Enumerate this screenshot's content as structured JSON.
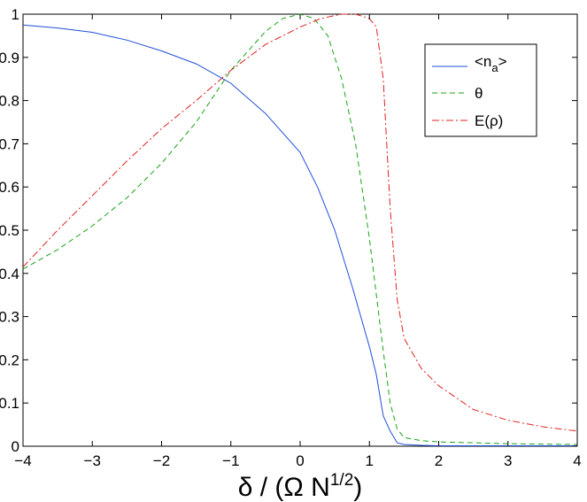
{
  "chart_data": {
    "type": "line",
    "xlabel": "δ / (Ω N1/2)",
    "xlabel_main": "δ / (Ω N",
    "xlabel_sup": "1/2",
    "xlabel_close": ")",
    "ylabel": "",
    "xlim": [
      -4,
      4
    ],
    "ylim": [
      0,
      1
    ],
    "grid": false,
    "legend_position": "top-right",
    "x_ticks": [
      -4,
      -3,
      -2,
      -1,
      0,
      1,
      2,
      3,
      4
    ],
    "x_tick_labels": [
      "−4",
      "−3",
      "−2",
      "−1",
      "0",
      "1",
      "2",
      "3",
      "4"
    ],
    "y_ticks": [
      0,
      0.1,
      0.2,
      0.3,
      0.4,
      0.5,
      0.6,
      0.7,
      0.8,
      0.9,
      1
    ],
    "y_tick_labels": [
      "0",
      "0.1",
      "0.2",
      "0.3",
      "0.4",
      "0.5",
      "0.6",
      "0.7",
      "0.8",
      "0.9",
      "1"
    ],
    "series": [
      {
        "name": "<na>",
        "legend_main": "<n",
        "legend_sub": "a",
        "legend_close": ">",
        "color": "#1f4fd6",
        "dash": "solid",
        "x": [
          -4,
          -3.5,
          -3,
          -2.5,
          -2,
          -1.5,
          -1,
          -0.5,
          0,
          0.25,
          0.5,
          0.75,
          1,
          1.1,
          1.2,
          1.3,
          1.4,
          1.5,
          1.75,
          2,
          2.5,
          3,
          3.5,
          4
        ],
        "y": [
          0.975,
          0.968,
          0.958,
          0.94,
          0.915,
          0.885,
          0.84,
          0.77,
          0.68,
          0.6,
          0.5,
          0.37,
          0.23,
          0.165,
          0.07,
          0.035,
          0.008,
          0.004,
          0.002,
          0.001,
          0.001,
          0.001,
          0.001,
          0.001
        ]
      },
      {
        "name": "θ",
        "legend_main": "θ",
        "color": "#17a317",
        "dash": "dashed",
        "x": [
          -4,
          -3.5,
          -3,
          -2.5,
          -2,
          -1.5,
          -1,
          -0.5,
          -0.25,
          0,
          0.2,
          0.4,
          0.6,
          0.8,
          1,
          1.1,
          1.2,
          1.3,
          1.4,
          1.5,
          1.75,
          2,
          2.5,
          3,
          3.5,
          4
        ],
        "y": [
          0.41,
          0.455,
          0.51,
          0.575,
          0.655,
          0.75,
          0.87,
          0.96,
          0.99,
          1.0,
          0.99,
          0.95,
          0.85,
          0.7,
          0.48,
          0.35,
          0.22,
          0.1,
          0.04,
          0.02,
          0.013,
          0.01,
          0.008,
          0.006,
          0.005,
          0.004
        ]
      },
      {
        "name": "E(ρ)",
        "legend_main": "E(ρ)",
        "color": "#e02020",
        "dash": "dashdot",
        "x": [
          -4,
          -3.5,
          -3,
          -2.5,
          -2,
          -1.5,
          -1,
          -0.5,
          0,
          0.3,
          0.6,
          0.8,
          1,
          1.1,
          1.2,
          1.3,
          1.4,
          1.5,
          1.75,
          2,
          2.5,
          3,
          3.5,
          4
        ],
        "y": [
          0.415,
          0.5,
          0.58,
          0.66,
          0.735,
          0.8,
          0.87,
          0.93,
          0.97,
          0.99,
          1.0,
          1.0,
          0.99,
          0.97,
          0.85,
          0.55,
          0.34,
          0.25,
          0.18,
          0.14,
          0.085,
          0.06,
          0.045,
          0.035
        ]
      }
    ]
  }
}
